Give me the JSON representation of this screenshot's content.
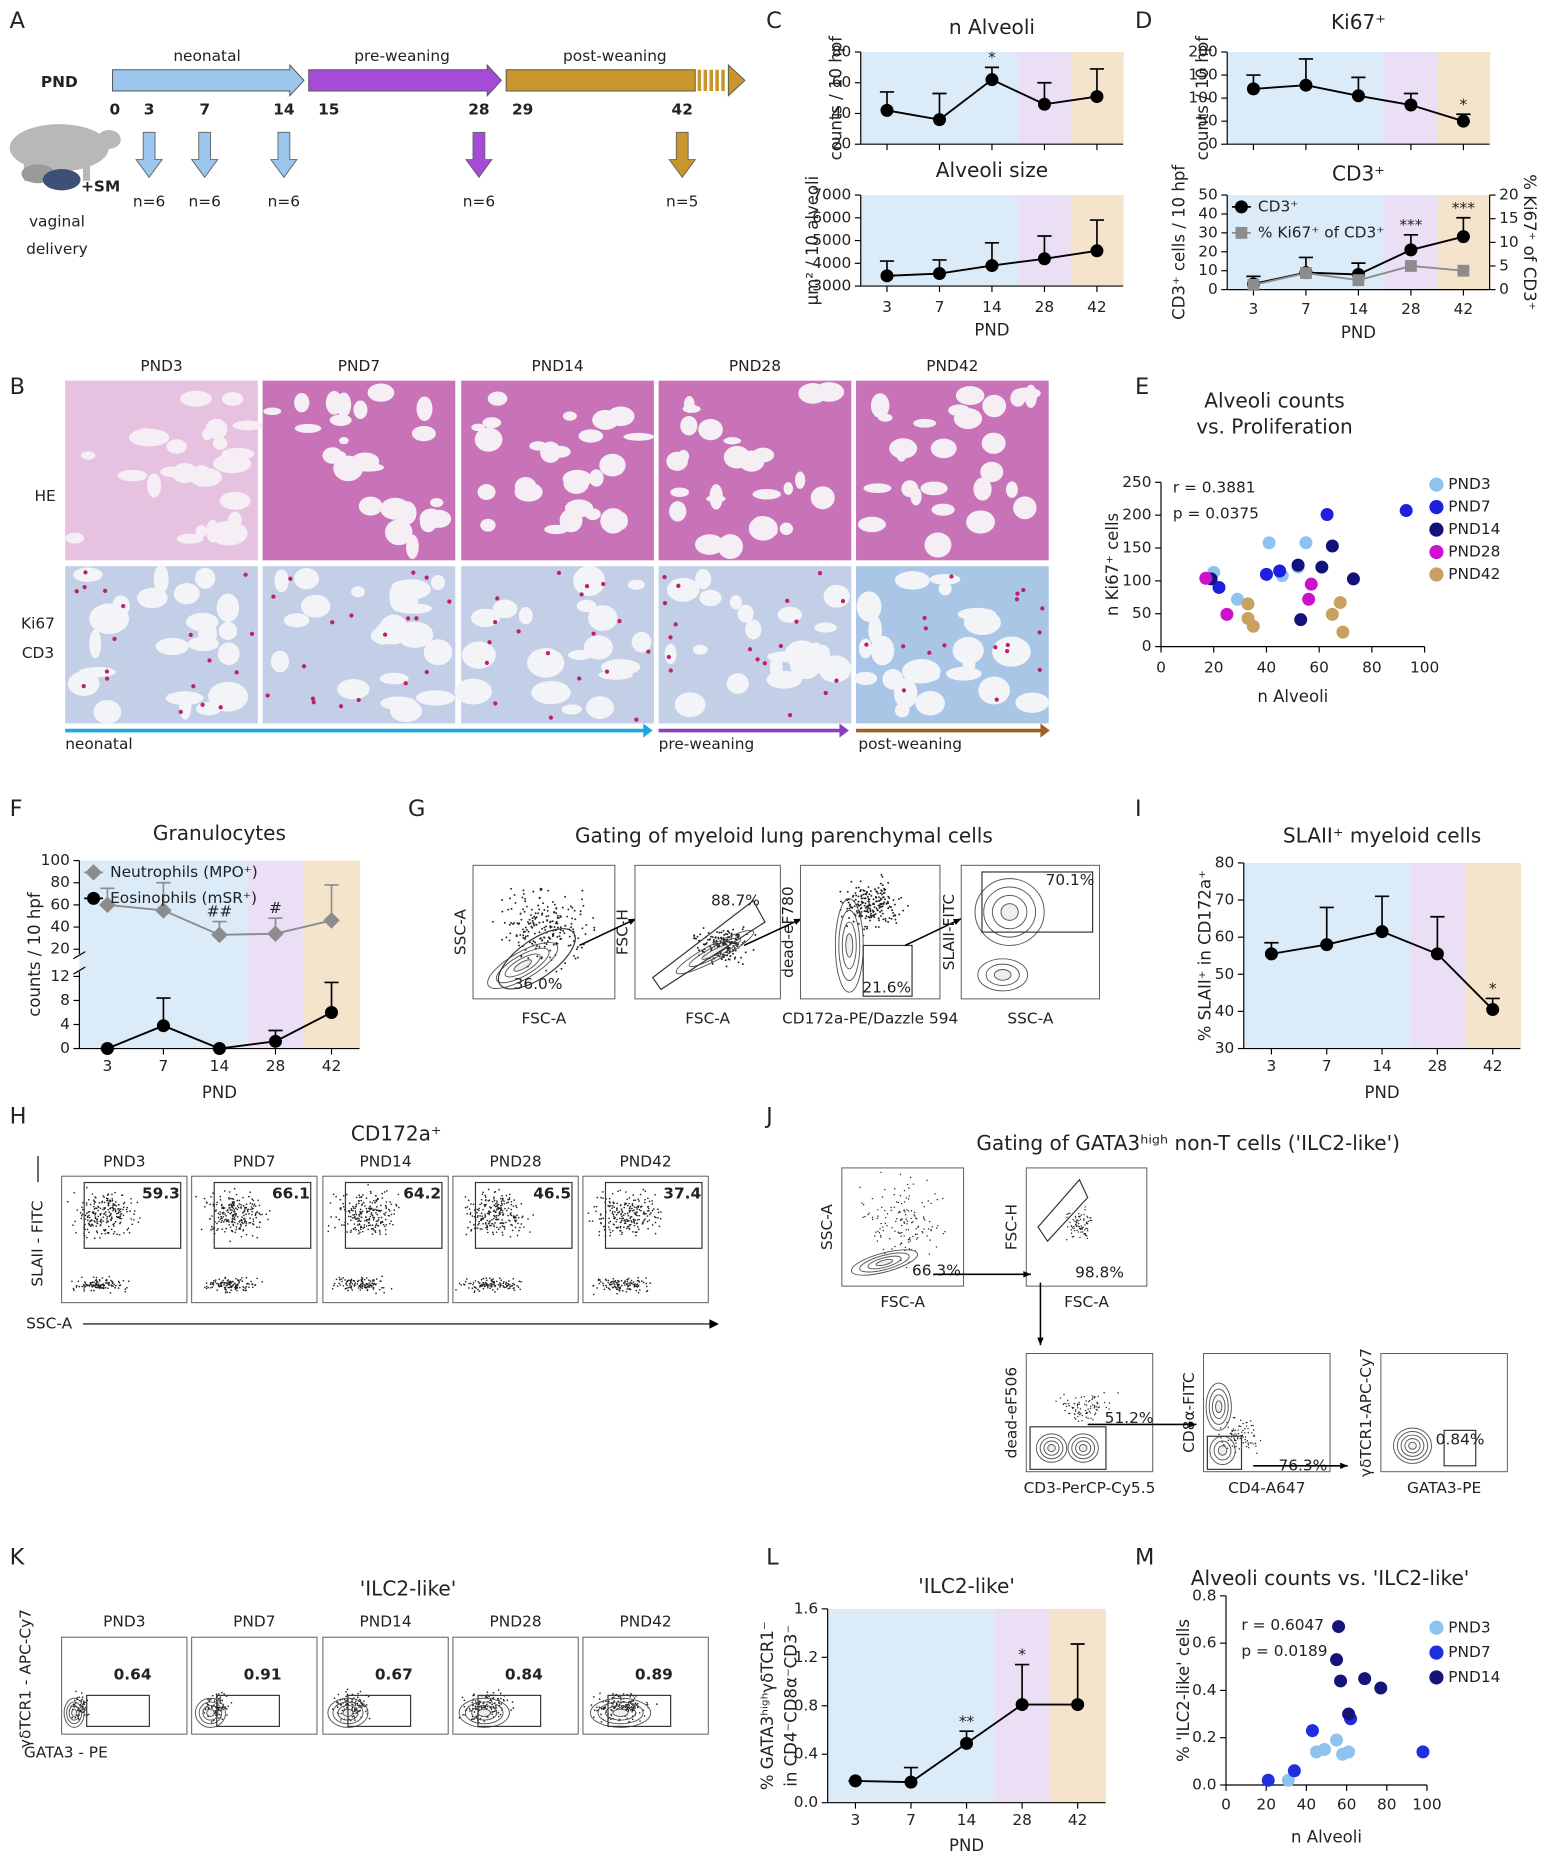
{
  "panel_letters": [
    "A",
    "B",
    "C",
    "D",
    "E",
    "F",
    "G",
    "H",
    "I",
    "J",
    "K",
    "L",
    "M"
  ],
  "timeline": {
    "label": "PND",
    "phases": [
      "neonatal",
      "pre-weaning",
      "post-weaning"
    ],
    "days": [
      0,
      3,
      7,
      14,
      15,
      28,
      29,
      42
    ],
    "samples": [
      "n=6",
      "n=6",
      "n=6",
      "n=6",
      "n=5"
    ],
    "supplement": "+SM",
    "delivery": [
      "vaginal",
      "delivery"
    ]
  },
  "histology": {
    "columns": [
      "PND3",
      "PND7",
      "PND14",
      "PND28",
      "PND42"
    ],
    "rows": [
      "HE",
      "Ki67",
      "CD3"
    ],
    "phases": [
      "neonatal",
      "pre-weaning",
      "post-weaning"
    ]
  },
  "gating_myeloid": {
    "title": "Gating of myeloid lung parenchymal cells",
    "plots": [
      {
        "x": "FSC-A",
        "y": "SSC-A",
        "gate": "36.0%"
      },
      {
        "x": "FSC-A",
        "y": "FSC-H",
        "gate": "88.7%"
      },
      {
        "x": "CD172a-PE/Dazzle 594",
        "y": "dead-eF780",
        "gate": "21.6%"
      },
      {
        "x": "SSC-A",
        "y": "SLAII-FITC",
        "gate": "70.1%"
      }
    ]
  },
  "cd172a": {
    "title": "CD172a⁺",
    "y": "SLAII - FITC",
    "x": "SSC-A",
    "plots": [
      {
        "name": "PND3",
        "gate": 59.3
      },
      {
        "name": "PND7",
        "gate": 66.1
      },
      {
        "name": "PND14",
        "gate": 64.2
      },
      {
        "name": "PND28",
        "gate": 46.5
      },
      {
        "name": "PND42",
        "gate": 37.4
      }
    ]
  },
  "gating_ilc2": {
    "title": "Gating of GATA3ʰⁱᵍʰ non-T cells ('ILC2-like')",
    "plots": [
      {
        "x": "FSC-A",
        "y": "SSC-A",
        "gate": "66.3%"
      },
      {
        "x": "FSC-A",
        "y": "FSC-H",
        "gate": "98.8%"
      },
      {
        "x": "CD3-PerCP-Cy5.5",
        "y": "dead-eF506",
        "gate": "51.2%"
      },
      {
        "x": "CD4-A647",
        "y": "CD8α-FITC",
        "gate": "76.3%"
      },
      {
        "x": "GATA3-PE",
        "y": "γδTCR1-APC-Cy7",
        "gate": "0.84%"
      }
    ]
  },
  "ilc2_plots": {
    "title": "'ILC2-like'",
    "y": "γδTCR1 - APC-Cy7",
    "x": "GATA3 - PE",
    "plots": [
      {
        "name": "PND3",
        "gate": 0.64
      },
      {
        "name": "PND7",
        "gate": 0.91
      },
      {
        "name": "PND14",
        "gate": 0.67
      },
      {
        "name": "PND28",
        "gate": 0.84
      },
      {
        "name": "PND42",
        "gate": 0.89
      }
    ]
  },
  "chart_data": [
    {
      "type": "line",
      "categories": [
        3,
        7,
        14,
        28,
        42
      ],
      "xlabel": "PND",
      "subplots": [
        {
          "title": "n Alveoli",
          "ylabel": "counts / 10 hpf",
          "ylim": [
            20,
            80
          ],
          "yticks": [
            20,
            40,
            60,
            80
          ],
          "series": [
            {
              "color": "#000000",
              "marker": "circle",
              "values": [
                42,
                36,
                62,
                46,
                51
              ],
              "errors": [
                12,
                17,
                8,
                14,
                18
              ],
              "annotations": [
                null,
                null,
                "*",
                null,
                null
              ]
            }
          ]
        },
        {
          "title": "Alveoli size",
          "ylabel": "µm² / 10 alveoli",
          "ylim": [
            3000,
            7000
          ],
          "yticks": [
            3000,
            4000,
            5000,
            6000,
            7000
          ],
          "series": [
            {
              "color": "#000000",
              "marker": "circle",
              "values": [
                3450,
                3550,
                3900,
                4200,
                4550
              ],
              "errors": [
                650,
                600,
                1000,
                1000,
                1350
              ]
            }
          ]
        }
      ]
    },
    {
      "type": "line",
      "categories": [
        3,
        7,
        14,
        28,
        42
      ],
      "xlabel": "PND",
      "subplots": [
        {
          "title": "Ki67⁺",
          "ylabel": "counts / 10 hpf",
          "ylim": [
            0,
            200
          ],
          "yticks": [
            0,
            50,
            100,
            150,
            200
          ],
          "series": [
            {
              "color": "#000000",
              "marker": "circle",
              "values": [
                120,
                128,
                105,
                85,
                50
              ],
              "errors": [
                30,
                57,
                40,
                25,
                15
              ],
              "annotations": [
                null,
                null,
                null,
                null,
                "*"
              ]
            }
          ]
        },
        {
          "title": "CD3⁺",
          "ylabel": "CD3⁺ cells / 10 hpf",
          "y2label": "% Ki67⁺ of CD3⁺",
          "ylim": [
            0,
            50
          ],
          "yticks": [
            0,
            10,
            20,
            30,
            40,
            50
          ],
          "y2lim": [
            0,
            20
          ],
          "y2ticks": [
            0,
            5,
            10,
            15,
            20
          ],
          "legend": "upper left",
          "series": [
            {
              "name": "CD3⁺",
              "color": "#000000",
              "marker": "circle",
              "values": [
                3,
                9,
                8,
                21,
                28
              ],
              "errors": [
                4,
                8,
                6,
                8,
                10
              ],
              "annotations": [
                null,
                null,
                null,
                "***",
                "***"
              ]
            },
            {
              "name": "% Ki67⁺ of CD3⁺",
              "color": "#8c8c8c",
              "marker": "square",
              "axis": "y2",
              "values": [
                1,
                3.5,
                2,
                5,
                4
              ]
            }
          ]
        }
      ]
    },
    {
      "type": "scatter",
      "title": [
        "Alveoli counts",
        "vs. Proliferation"
      ],
      "xlabel": "n Alveoli",
      "ylabel": "n Ki67⁺ cells",
      "xlim": [
        0,
        100
      ],
      "xticks": [
        0,
        20,
        40,
        60,
        80,
        100
      ],
      "ylim": [
        0,
        250
      ],
      "yticks": [
        0,
        50,
        100,
        150,
        200,
        250
      ],
      "legend": "right",
      "annotations": [
        "r = 0.3881",
        "p = 0.0375"
      ],
      "series": [
        {
          "name": "PND3",
          "color": "#8ec3f0",
          "x": [
            20,
            41,
            55,
            29,
            46,
            52
          ],
          "y": [
            113,
            158,
            158,
            72,
            108,
            121
          ]
        },
        {
          "name": "PND7",
          "color": "#1f1fe0",
          "x": [
            93,
            63,
            22,
            40,
            45
          ],
          "y": [
            207,
            201,
            90,
            110,
            115
          ]
        },
        {
          "name": "PND14",
          "color": "#12127a",
          "x": [
            65,
            73,
            53,
            52,
            19,
            61
          ],
          "y": [
            153,
            103,
            41,
            124,
            103,
            121
          ]
        },
        {
          "name": "PND28",
          "color": "#cc11cc",
          "x": [
            17,
            57,
            56,
            25
          ],
          "y": [
            104,
            95,
            72,
            49
          ]
        },
        {
          "name": "PND42",
          "color": "#c8a060",
          "x": [
            33,
            35,
            65,
            68,
            69,
            33
          ],
          "y": [
            43,
            31,
            49,
            67,
            22,
            65
          ]
        }
      ]
    },
    {
      "type": "line",
      "categories": [
        3,
        7,
        14,
        28,
        42
      ],
      "xlabel": "PND",
      "subplots": [
        {
          "title": "Granulocytes",
          "ylabel": "counts / 10 hpf",
          "ylim": [
            0,
            12
          ],
          "yticks": [
            0,
            4,
            8,
            12
          ],
          "y2lim": [
            20,
            100
          ],
          "y2ticks": [
            20,
            40,
            60,
            80,
            100
          ],
          "legend": "upper left",
          "series": [
            {
              "name": "Neutrophils (MPO⁺)",
              "color": "#8c8c8c",
              "marker": "diamond",
              "axis": "y2",
              "values": [
                60,
                55,
                33,
                34,
                46
              ],
              "errors": [
                15,
                25,
                12,
                14,
                32
              ],
              "annotations": [
                null,
                null,
                "##",
                "#",
                null
              ]
            },
            {
              "name": "Eosinophils (mSR⁺)",
              "color": "#000000",
              "marker": "circle",
              "values": [
                0,
                3.8,
                0,
                1.2,
                6
              ],
              "errors": [
                0,
                4.6,
                0,
                1.8,
                5
              ]
            }
          ]
        }
      ]
    },
    {
      "type": "line",
      "categories": [
        3,
        7,
        14,
        28,
        42
      ],
      "xlabel": "PND",
      "subplots": [
        {
          "title": "SLAII⁺ myeloid cells",
          "ylabel": "% SLAII⁺ in CD172a⁺",
          "ylim": [
            30,
            80
          ],
          "yticks": [
            30,
            40,
            50,
            60,
            70,
            80
          ],
          "series": [
            {
              "color": "#000000",
              "marker": "circle",
              "values": [
                55.5,
                58,
                61.5,
                55.5,
                40.5
              ],
              "errors": [
                3,
                10,
                9.5,
                10,
                3
              ],
              "annotations": [
                null,
                null,
                null,
                null,
                "*"
              ]
            }
          ]
        }
      ]
    },
    {
      "type": "line",
      "categories": [
        3,
        7,
        14,
        28,
        42
      ],
      "xlabel": "PND",
      "subplots": [
        {
          "title": "'ILC2-like'",
          "ylabel": [
            "% GATA3ʰⁱᵍʰγδTCR1⁻",
            "in CD4⁻CD8α⁻CD3⁻"
          ],
          "ylim": [
            0,
            1.6
          ],
          "yticks": [
            {
              "value": 0,
              "label": "0.0"
            },
            0.4,
            0.8,
            1.2,
            1.6
          ],
          "series": [
            {
              "color": "#000000",
              "marker": "circle",
              "values": [
                0.18,
                0.17,
                0.49,
                0.81,
                0.81
              ],
              "errors": [
                0,
                0.12,
                0.1,
                0.33,
                0.5
              ],
              "annotations": [
                null,
                null,
                "**",
                "*",
                null
              ]
            }
          ]
        }
      ]
    },
    {
      "type": "scatter",
      "title": [
        "Alveoli counts vs. 'ILC2-like'"
      ],
      "xlabel": "n Alveoli",
      "ylabel": "% 'ILC2-like' cells",
      "xlim": [
        0,
        100
      ],
      "xticks": [
        0,
        20,
        40,
        60,
        80,
        100
      ],
      "ylim": [
        0,
        0.8
      ],
      "yticks": [
        {
          "value": 0,
          "label": "0.0"
        },
        0.2,
        0.4,
        0.6,
        0.8
      ],
      "legend": "right",
      "annotations": [
        "r = 0.6047",
        "p = 0.0189"
      ],
      "series": [
        {
          "name": "PND3",
          "color": "#8ec3f0",
          "x": [
            45,
            49,
            55,
            61,
            58,
            31
          ],
          "y": [
            0.14,
            0.15,
            0.19,
            0.14,
            0.13,
            0.02
          ]
        },
        {
          "name": "PND7",
          "color": "#1f2ee0",
          "x": [
            43,
            62,
            98,
            21,
            34
          ],
          "y": [
            0.23,
            0.28,
            0.14,
            0.02,
            0.06
          ]
        },
        {
          "name": "PND14",
          "color": "#14147a",
          "x": [
            57,
            69,
            55,
            77,
            61,
            56
          ],
          "y": [
            0.44,
            0.45,
            0.53,
            0.41,
            0.3,
            0.67
          ]
        }
      ]
    }
  ]
}
